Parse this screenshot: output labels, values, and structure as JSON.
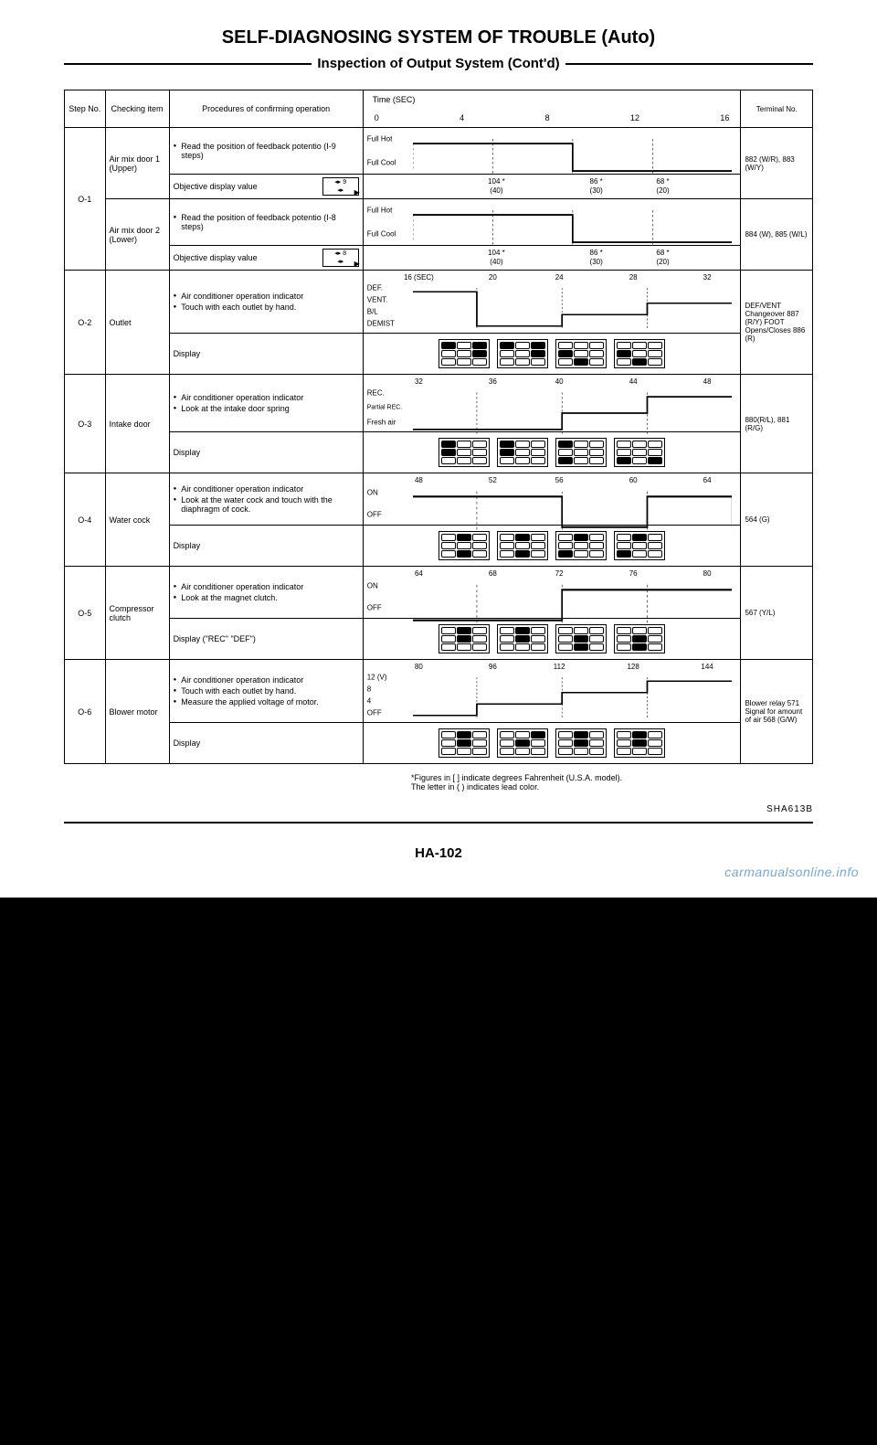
{
  "title": "SELF-DIAGNOSING SYSTEM OF TROUBLE (Auto)",
  "subtitle": "Inspection of Output System (Cont'd)",
  "header": {
    "step": "Step No.",
    "item": "Checking item",
    "proc": "Procedures of confirming operation",
    "time_label": "Time (SEC)",
    "time_ticks": [
      "0",
      "4",
      "8",
      "12",
      "16"
    ],
    "term": "Terminal No."
  },
  "rows": [
    {
      "step": "O-1",
      "item1": "Air mix door 1 (Upper)",
      "item2": "Air mix door 2 (Lower)",
      "proc1": "Read the position of feedback potentio (I-9 steps)",
      "obj": "Objective display value",
      "proc2": "Read the position of feedback potentio (I-8 steps)",
      "y_top": "Full Hot",
      "y_bot": "Full Cool",
      "nums1": [
        "104 *",
        "86 *",
        "68 *"
      ],
      "nums1b": [
        "(40)",
        "(30)",
        "(20)"
      ],
      "nums2": [
        "104 *",
        "86 *",
        "68 *"
      ],
      "nums2b": [
        "(40)",
        "(30)",
        "(20)"
      ],
      "term1": "882 (W/R), 883 (W/Y)",
      "term2": "884 (W), 885 (W/L)"
    },
    {
      "step": "O-2",
      "item": "Outlet",
      "proc_a": "Air conditioner operation indicator",
      "proc_b": "Touch with each outlet by hand.",
      "display": "Display",
      "y": [
        "DEF.",
        "VENT.",
        "B/L",
        "DEMIST"
      ],
      "top_nums": [
        "16 (SEC)",
        "20",
        "24",
        "28",
        "32"
      ],
      "term": "DEF/VENT Changeover 887 (R/Y) FOOT Opens/Closes 886 (R)"
    },
    {
      "step": "O-3",
      "item": "Intake door",
      "proc_a": "Air conditioner operation indicator",
      "proc_b": "Look at the intake door spring",
      "display": "Display",
      "y": [
        "REC.",
        "Partial REC.",
        "Fresh air"
      ],
      "top_nums": [
        "32",
        "36",
        "40",
        "44",
        "48"
      ],
      "term": "880(R/L), 881 (R/G)"
    },
    {
      "step": "O-4",
      "item": "Water cock",
      "proc_a": "Air conditioner operation indicator",
      "proc_b": "Look at the water cock and touch with the diaphragm of cock.",
      "display": "Display",
      "y": [
        "ON",
        "OFF"
      ],
      "top_nums": [
        "48",
        "52",
        "56",
        "60",
        "64"
      ],
      "term": "564 (G)"
    },
    {
      "step": "O-5",
      "item": "Compressor clutch",
      "proc_a": "Air conditioner operation indicator",
      "proc_b": "Look at the magnet clutch.",
      "display": "Display (\"REC\" \"DEF\")",
      "y": [
        "ON",
        "OFF"
      ],
      "top_nums": [
        "64",
        "68",
        "72",
        "76",
        "80"
      ],
      "term": "567 (Y/L)"
    },
    {
      "step": "O-6",
      "item": "Blower motor",
      "proc_a": "Air conditioner operation indicator",
      "proc_b": "Touch with each outlet by hand.",
      "proc_c": "Measure the applied voltage of motor.",
      "display": "Display",
      "y": [
        "12 (V)",
        "8",
        "4",
        "OFF"
      ],
      "top_nums": [
        "80",
        "96",
        "112",
        "128",
        "144"
      ],
      "term": "Blower relay 571 Signal for amount of air 568 (G/W)"
    }
  ],
  "footnote1": "*Figures in [   ] indicate degrees Fahrenheit (U.S.A. model).",
  "footnote2": "The letter in (   ) indicates lead color.",
  "code": "SHA613B",
  "pagenum": "HA-102",
  "watermark": "carmanualsonline.info",
  "colors": {
    "bg": "#ffffff",
    "fg": "#000000"
  }
}
